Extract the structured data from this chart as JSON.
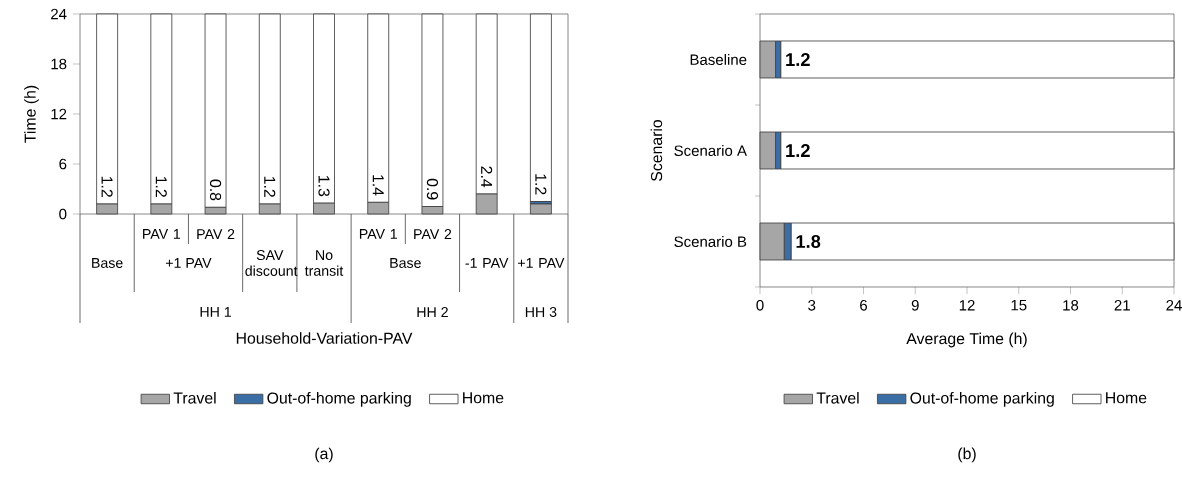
{
  "chart_data": [
    {
      "type": "bar",
      "title": "(a)",
      "xlabel": "Household-Variation-PAV",
      "ylabel": "Time (h)",
      "stacked": true,
      "legend": "bottom",
      "categories": [
        "Base",
        "PAV 1",
        "PAV 2",
        "SAV discount",
        "No transit",
        "PAV 1",
        "PAV 2",
        "-1 PAV",
        "+1 PAV"
      ],
      "series": [
        {
          "name": "Travel",
          "color": "#a6a6a6",
          "values": [
            1.2,
            1.2,
            0.8,
            1.2,
            1.3,
            1.4,
            0.9,
            2.4,
            1.2
          ],
          "value_labels": [
            "1.2",
            "1.2",
            "0.8",
            "1.2",
            "1.3",
            "1.4",
            "0.9",
            "2.4",
            "1.2"
          ]
        },
        {
          "name": "Out-of-home parking",
          "color": "#3b6ea5",
          "values": [
            0,
            0,
            0,
            0,
            0,
            0,
            0,
            0,
            0.3
          ]
        },
        {
          "name": "Home",
          "color": "#ffffff",
          "values": [
            22.8,
            22.8,
            23.2,
            22.8,
            22.7,
            22.6,
            23.1,
            21.6,
            22.5
          ]
        }
      ],
      "ylim": [
        0,
        24
      ],
      "yticks": [
        0,
        6,
        12,
        18,
        24
      ],
      "annotations": [
        "+1 PAV",
        "Base",
        "HH 1",
        "HH 2",
        "HH 3"
      ]
    },
    {
      "type": "bar",
      "title": "(b)",
      "xlabel": "Average Time (h)",
      "ylabel": "Scenario",
      "stacked": true,
      "orientation": "horizontal",
      "legend": "bottom",
      "categories": [
        "Baseline",
        "Scenario A",
        "Scenario B"
      ],
      "series": [
        {
          "name": "Travel",
          "color": "#a6a6a6",
          "values": [
            0.9,
            0.9,
            1.4
          ]
        },
        {
          "name": "Out-of-home parking",
          "color": "#3b6ea5",
          "values": [
            0.3,
            0.3,
            0.4
          ]
        },
        {
          "name": "Home",
          "color": "#ffffff",
          "values": [
            22.8,
            22.8,
            22.2
          ]
        }
      ],
      "annotations": [
        "1.2",
        "1.2",
        "1.8"
      ],
      "xlim": [
        0,
        24
      ],
      "xticks": [
        0,
        3,
        6,
        9,
        12,
        15,
        18,
        21,
        24
      ]
    }
  ]
}
